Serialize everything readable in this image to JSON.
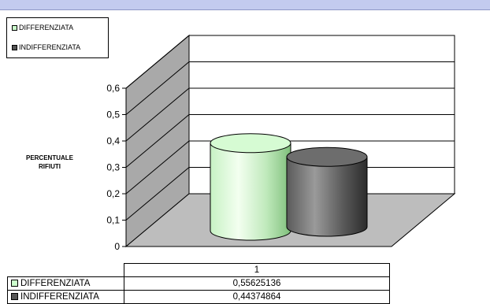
{
  "chart_data": {
    "type": "bar",
    "style": "3d-cylinder",
    "categories": [
      "1"
    ],
    "series": [
      {
        "name": "DIFFERENZIATA",
        "values": [
          0.55625136
        ],
        "color": "#ccffcc"
      },
      {
        "name": "INDIFFERENZIATA",
        "values": [
          0.44374864
        ],
        "color": "#555555"
      }
    ],
    "ylabel": "PERCENTUALE RIFIUTI",
    "ylim": [
      0,
      0.6
    ],
    "yticks": [
      "0",
      "0,1",
      "0,2",
      "0,3",
      "0,4",
      "0,5",
      "0,6"
    ],
    "grid": true,
    "legend_position": "top-left",
    "data_table": {
      "header": "1",
      "rows": [
        {
          "name": "DIFFERENZIATA",
          "value": "0,55625136"
        },
        {
          "name": "INDIFFERENZIATA",
          "value": "0,44374864"
        }
      ]
    }
  }
}
